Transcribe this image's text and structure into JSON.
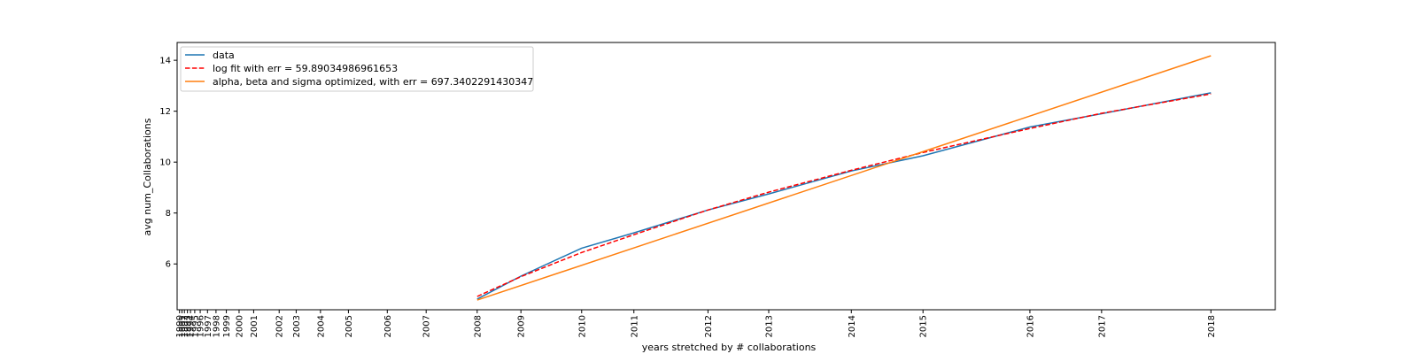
{
  "chart_data": {
    "type": "line",
    "xlabel": "years stretched by # collaborations",
    "ylabel": "avg num_Collaborations",
    "ylim": [
      4.2,
      14.7
    ],
    "y_ticks": [
      6,
      8,
      10,
      12,
      14
    ],
    "x_ticks": [
      {
        "label": "1990",
        "pos": 0.0
      },
      {
        "label": "1991",
        "pos": 0.2
      },
      {
        "label": "1992",
        "pos": 0.4
      },
      {
        "label": "1993",
        "pos": 0.65
      },
      {
        "label": "1994",
        "pos": 0.9
      },
      {
        "label": "1995",
        "pos": 1.25
      },
      {
        "label": "1996",
        "pos": 1.7
      },
      {
        "label": "1997",
        "pos": 2.3
      },
      {
        "label": "1998",
        "pos": 3.0
      },
      {
        "label": "1999",
        "pos": 3.85
      },
      {
        "label": "2000",
        "pos": 4.9
      },
      {
        "label": "2001",
        "pos": 6.1
      },
      {
        "label": "2002",
        "pos": 8.2
      },
      {
        "label": "2003",
        "pos": 9.6
      },
      {
        "label": "2004",
        "pos": 11.6
      },
      {
        "label": "2005",
        "pos": 13.9
      },
      {
        "label": "2006",
        "pos": 17.1
      },
      {
        "label": "2007",
        "pos": 20.3
      },
      {
        "label": "2008",
        "pos": 24.5
      },
      {
        "label": "2009",
        "pos": 28.1
      },
      {
        "label": "2010",
        "pos": 33.1
      },
      {
        "label": "2011",
        "pos": 37.4
      },
      {
        "label": "2012",
        "pos": 43.5
      },
      {
        "label": "2013",
        "pos": 48.5
      },
      {
        "label": "2014",
        "pos": 55.3
      },
      {
        "label": "2015",
        "pos": 61.2
      },
      {
        "label": "2016",
        "pos": 70.0
      },
      {
        "label": "2017",
        "pos": 75.9
      },
      {
        "label": "2018",
        "pos": 84.9
      }
    ],
    "xlim": [
      -0.2,
      90.2
    ],
    "series": [
      {
        "name": "data",
        "color": "#1f77b4",
        "style": "solid",
        "points": [
          [
            24.5,
            4.62
          ],
          [
            28.1,
            5.52
          ],
          [
            33.1,
            6.62
          ],
          [
            37.4,
            7.22
          ],
          [
            43.5,
            8.12
          ],
          [
            48.5,
            8.75
          ],
          [
            55.3,
            9.65
          ],
          [
            61.2,
            10.25
          ],
          [
            70.0,
            11.38
          ],
          [
            75.9,
            11.9
          ],
          [
            84.9,
            12.72
          ]
        ]
      },
      {
        "name": "log fit with err = 59.89034986961653",
        "color": "#ff0000",
        "style": "dashed",
        "points": [
          [
            24.5,
            4.72
          ],
          [
            28.1,
            5.5
          ],
          [
            33.1,
            6.45
          ],
          [
            37.4,
            7.15
          ],
          [
            43.5,
            8.12
          ],
          [
            48.5,
            8.82
          ],
          [
            55.3,
            9.68
          ],
          [
            61.2,
            10.38
          ],
          [
            70.0,
            11.32
          ],
          [
            75.9,
            11.92
          ],
          [
            84.9,
            12.68
          ]
        ]
      },
      {
        "name": "alpha, beta and sigma optimized, with err = 697.3402291430347",
        "color": "#ff7f0e",
        "style": "solid",
        "points": [
          [
            24.5,
            4.58
          ],
          [
            84.9,
            14.18
          ]
        ]
      }
    ],
    "legend": "upper left"
  }
}
